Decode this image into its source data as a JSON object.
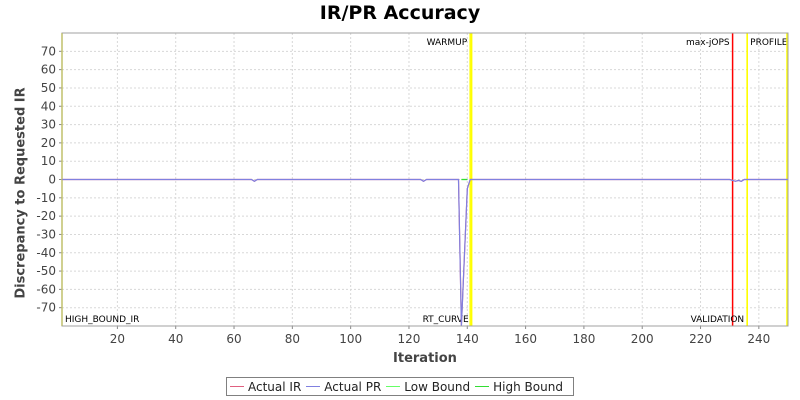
{
  "chart_data": {
    "type": "line",
    "title": "IR/PR Accuracy",
    "xlabel": "Iteration",
    "ylabel": "Discrepancy to Requested IR",
    "xlim": [
      1,
      250
    ],
    "ylim": [
      -80,
      80
    ],
    "xticks": [
      20,
      40,
      60,
      80,
      100,
      120,
      140,
      160,
      180,
      200,
      220,
      240
    ],
    "yticks": [
      -70,
      -60,
      -50,
      -40,
      -30,
      -20,
      -10,
      0,
      10,
      20,
      30,
      40,
      50,
      60,
      70
    ],
    "grid": true,
    "legend_position": "bottom",
    "series": [
      {
        "name": "Actual IR",
        "color": "#e06080",
        "x": [
          1,
          66,
          67,
          68,
          124,
          125,
          126,
          137,
          138,
          140,
          141,
          142,
          230,
          231,
          232,
          233,
          234,
          235,
          250
        ],
        "y": [
          0,
          0,
          -1,
          0,
          0,
          -1,
          0,
          0,
          -80,
          -5,
          0,
          0,
          0,
          -0.5,
          -1,
          -0.5,
          -1,
          0,
          0
        ]
      },
      {
        "name": "Actual PR",
        "color": "#8080e0",
        "x": [
          1,
          66,
          67,
          68,
          124,
          125,
          126,
          137,
          138,
          140,
          141,
          142,
          230,
          231,
          232,
          233,
          234,
          235,
          250
        ],
        "y": [
          0,
          0,
          -1,
          0,
          0,
          -1,
          0,
          0,
          -80,
          -5,
          0,
          0,
          0,
          -0.5,
          -1,
          -0.5,
          -1,
          0,
          0
        ]
      },
      {
        "name": "Low Bound",
        "color": "#66ff66",
        "x": [
          138,
          139,
          140
        ],
        "y": [
          0,
          0,
          0
        ]
      },
      {
        "name": "High Bound",
        "color": "#33dd33",
        "x": [
          138,
          139,
          140
        ],
        "y": [
          0,
          0,
          0
        ]
      }
    ],
    "markers": [
      {
        "label": "WARMUP",
        "x": 141,
        "color": "#ffff00",
        "label_pos": "top",
        "anchor": "end"
      },
      {
        "label": "RT_CURVE",
        "x": 141.5,
        "color": "#ffff00",
        "label_pos": "bottom",
        "anchor": "end"
      },
      {
        "label": "max-jOPS",
        "x": 231,
        "color": "#ff0000",
        "label_pos": "top",
        "anchor": "end"
      },
      {
        "label": "VALIDATION",
        "x": 236,
        "color": "#ffff00",
        "label_pos": "bottom",
        "anchor": "end"
      },
      {
        "label": "PROFILE",
        "x": 236,
        "color": "#ffff00",
        "label_pos": "top",
        "anchor": "start"
      },
      {
        "label": "HIGH_BOUND_IR",
        "x": 1,
        "color": "#ffff00",
        "label_pos": "bottom",
        "anchor": "start"
      },
      {
        "label": "",
        "x": 250,
        "color": "#ffff00",
        "label_pos": "none",
        "anchor": "start"
      }
    ]
  },
  "legend": {
    "items": [
      {
        "label": "Actual IR",
        "color": "#e06080"
      },
      {
        "label": "Actual PR",
        "color": "#8080e0"
      },
      {
        "label": "Low Bound",
        "color": "#66ff66"
      },
      {
        "label": "High Bound",
        "color": "#33dd33"
      }
    ]
  }
}
